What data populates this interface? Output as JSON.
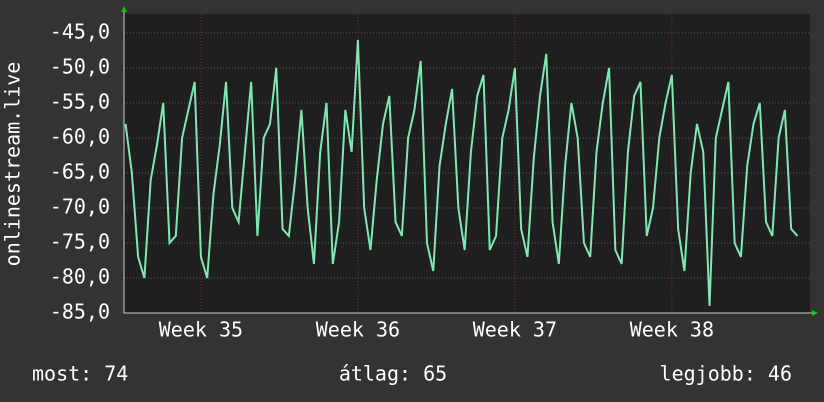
{
  "chart_data": {
    "type": "line",
    "y_label": "onlinestream.live",
    "x": [
      34.52,
      34.56,
      34.6,
      34.64,
      34.68,
      34.72,
      34.76,
      34.8,
      34.84,
      34.88,
      34.92,
      34.96,
      35.0,
      35.04,
      35.08,
      35.12,
      35.16,
      35.2,
      35.24,
      35.28,
      35.32,
      35.36,
      35.4,
      35.44,
      35.48,
      35.52,
      35.56,
      35.6,
      35.64,
      35.68,
      35.72,
      35.76,
      35.8,
      35.84,
      35.88,
      35.92,
      35.96,
      36.0,
      36.04,
      36.08,
      36.12,
      36.16,
      36.2,
      36.24,
      36.28,
      36.32,
      36.36,
      36.4,
      36.44,
      36.48,
      36.52,
      36.56,
      36.6,
      36.64,
      36.68,
      36.72,
      36.76,
      36.8,
      36.84,
      36.88,
      36.92,
      36.96,
      37.0,
      37.04,
      37.08,
      37.12,
      37.16,
      37.2,
      37.24,
      37.28,
      37.32,
      37.36,
      37.4,
      37.44,
      37.48,
      37.52,
      37.56,
      37.6,
      37.64,
      37.68,
      37.72,
      37.76,
      37.8,
      37.84,
      37.88,
      37.92,
      37.96,
      38.0,
      38.04,
      38.08,
      38.12,
      38.16,
      38.2,
      38.24,
      38.28,
      38.32,
      38.36,
      38.4,
      38.44,
      38.48,
      38.52,
      38.56,
      38.6,
      38.64,
      38.68,
      38.72,
      38.76,
      38.8
    ],
    "series": [
      {
        "name": "onlinestream.live",
        "color": "#7ee8b0",
        "values": [
          -58,
          -65,
          -77,
          -80,
          -66,
          -61,
          -55,
          -75,
          -74,
          -60,
          -56,
          -52,
          -77,
          -80,
          -68,
          -61,
          -52,
          -70,
          -72,
          -62,
          -52,
          -74,
          -60,
          -58,
          -50,
          -73,
          -74,
          -66,
          -56,
          -70,
          -78,
          -62,
          -55,
          -78,
          -72,
          -56,
          -62,
          -46,
          -70,
          -76,
          -66,
          -58,
          -54,
          -72,
          -74,
          -60,
          -56,
          -49,
          -75,
          -79,
          -64,
          -58,
          -53,
          -70,
          -76,
          -62,
          -54,
          -51,
          -76,
          -74,
          -60,
          -56,
          -50,
          -73,
          -77,
          -63,
          -54,
          -48,
          -72,
          -78,
          -64,
          -55,
          -60,
          -75,
          -77,
          -62,
          -55,
          -50,
          -76,
          -78,
          -62,
          -54,
          -52,
          -74,
          -70,
          -60,
          -55,
          -51,
          -73,
          -79,
          -65,
          -58,
          -62,
          -84,
          -60,
          -56,
          -52,
          -75,
          -77,
          -64,
          -58,
          -55,
          -72,
          -74,
          -60,
          -56,
          -73,
          -74
        ]
      }
    ],
    "xlim": [
      34.51,
      38.88
    ],
    "xticks": [
      {
        "value": 35,
        "label": "Week 35"
      },
      {
        "value": 36,
        "label": "Week 36"
      },
      {
        "value": 37,
        "label": "Week 37"
      },
      {
        "value": 38,
        "label": "Week 38"
      }
    ],
    "ylim": [
      -85,
      -42.3
    ],
    "yticks": [
      {
        "value": -45,
        "label": "-45,0"
      },
      {
        "value": -50,
        "label": "-50,0"
      },
      {
        "value": -55,
        "label": "-55,0"
      },
      {
        "value": -60,
        "label": "-60,0"
      },
      {
        "value": -65,
        "label": "-65,0"
      },
      {
        "value": -70,
        "label": "-70,0"
      },
      {
        "value": -75,
        "label": "-75,0"
      },
      {
        "value": -80,
        "label": "-80,0"
      },
      {
        "value": -85,
        "label": "-85,0"
      }
    ],
    "grid": true,
    "footer": [
      "most: 74",
      "átlag: 65",
      "legjobb: 46"
    ]
  }
}
